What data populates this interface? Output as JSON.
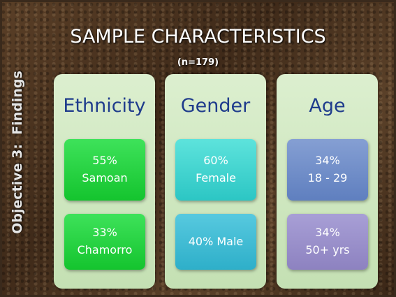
{
  "title": "SAMPLE CHARACTERISTICS",
  "subtitle": "(n=179)",
  "side_label": "Objective 3:  Findings",
  "columns": [
    {
      "heading": "Ethnicity",
      "boxes": [
        {
          "lines": [
            "55%",
            "Samoan"
          ]
        },
        {
          "lines": [
            "33%",
            "Chamorro"
          ]
        }
      ]
    },
    {
      "heading": "Gender",
      "boxes": [
        {
          "lines": [
            "60%",
            "Female"
          ]
        },
        {
          "lines": [
            "40% Male"
          ]
        }
      ]
    },
    {
      "heading": "Age",
      "boxes": [
        {
          "lines": [
            "34%",
            "18 - 29"
          ]
        },
        {
          "lines": [
            "34%",
            "50+ yrs"
          ]
        }
      ]
    }
  ]
}
